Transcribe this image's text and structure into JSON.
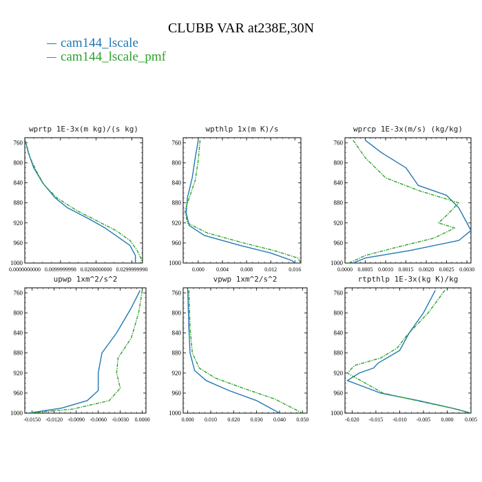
{
  "title": "CLUBB VAR at238E,30N",
  "colors": {
    "series_1": "#1f77b4",
    "series_2": "#2ca02c"
  },
  "legend": [
    {
      "label": "cam144_lscale",
      "color": "#1f77b4"
    },
    {
      "label": "cam144_lscale_pmf",
      "color": "#2ca02c"
    }
  ],
  "chart_data": [
    {
      "type": "line",
      "title": "wprtp  1E-3x(m kg)/(s kg)",
      "xlim": [
        0.0,
        0.033
      ],
      "ylim": [
        1000,
        750
      ],
      "x_ticks": [
        "0.0000000000",
        "0.0099999998",
        "0.0200000000",
        "0.0299999990"
      ],
      "x_tick_values": [
        0.0,
        0.01,
        0.02,
        0.03
      ],
      "y_ticks": [
        760,
        800,
        840,
        880,
        920,
        960,
        1000
      ],
      "series": [
        {
          "name": "cam144_lscale",
          "points": [
            [
              0.0001,
              755
            ],
            [
              0.001,
              780
            ],
            [
              0.0025,
              810
            ],
            [
              0.005,
              840
            ],
            [
              0.0085,
              870
            ],
            [
              0.012,
              890
            ],
            [
              0.0175,
              910
            ],
            [
              0.0225,
              930
            ],
            [
              0.0265,
              950
            ],
            [
              0.0295,
              965
            ],
            [
              0.031,
              985
            ],
            [
              0.031,
              1000
            ]
          ]
        },
        {
          "name": "cam144_lscale_pmf",
          "points": [
            [
              0.0001,
              755
            ],
            [
              0.0015,
              790
            ],
            [
              0.0035,
              820
            ],
            [
              0.0055,
              845
            ],
            [
              0.009,
              870
            ],
            [
              0.0145,
              895
            ],
            [
              0.02,
              915
            ],
            [
              0.0255,
              935
            ],
            [
              0.0295,
              955
            ],
            [
              0.0315,
              975
            ],
            [
              0.0325,
              990
            ],
            [
              0.033,
              1000
            ]
          ]
        }
      ]
    },
    {
      "type": "line",
      "title": "wpthlp  1x(m K)/s",
      "xlim": [
        -0.0025,
        0.017
      ],
      "ylim": [
        1000,
        750
      ],
      "x_ticks": [
        "0.000",
        "0.004",
        "0.008",
        "0.012",
        "0.016"
      ],
      "x_tick_values": [
        0.0,
        0.004,
        0.008,
        0.012,
        0.016
      ],
      "y_ticks": [
        760,
        800,
        840,
        880,
        920,
        960,
        1000
      ],
      "series": [
        {
          "name": "cam144_lscale",
          "points": [
            [
              0.0,
              755
            ],
            [
              -0.0005,
              790
            ],
            [
              -0.001,
              830
            ],
            [
              -0.0018,
              870
            ],
            [
              -0.002,
              900
            ],
            [
              -0.0015,
              925
            ],
            [
              0.001,
              945
            ],
            [
              0.007,
              965
            ],
            [
              0.012,
              980
            ],
            [
              0.0155,
              995
            ],
            [
              0.016,
              1000
            ]
          ]
        },
        {
          "name": "cam144_lscale_pmf",
          "points": [
            [
              0.0003,
              755
            ],
            [
              0.0,
              795
            ],
            [
              -0.0005,
              835
            ],
            [
              -0.0015,
              870
            ],
            [
              -0.0022,
              895
            ],
            [
              -0.0018,
              920
            ],
            [
              0.0015,
              940
            ],
            [
              0.0075,
              960
            ],
            [
              0.0125,
              975
            ],
            [
              0.0165,
              990
            ],
            [
              0.017,
              1000
            ]
          ]
        }
      ]
    },
    {
      "type": "line",
      "title": "wprcp  1E-3x(m/s) (kg/kg)",
      "xlim": [
        0.0,
        0.0031
      ],
      "ylim": [
        1000,
        750
      ],
      "x_ticks": [
        "0.0000",
        "0.0005",
        "0.0010",
        "0.0015",
        "0.0020",
        "0.0025",
        "0.0030"
      ],
      "x_tick_values": [
        0.0,
        0.0005,
        0.001,
        0.0015,
        0.002,
        0.0025,
        0.003
      ],
      "y_ticks": [
        760,
        800,
        840,
        880,
        920,
        960,
        1000
      ],
      "series": [
        {
          "name": "cam144_lscale",
          "points": [
            [
              0.0005,
              755
            ],
            [
              0.0009,
              780
            ],
            [
              0.0015,
              810
            ],
            [
              0.0018,
              845
            ],
            [
              0.0025,
              865
            ],
            [
              0.0028,
              890
            ],
            [
              0.003,
              920
            ],
            [
              0.0031,
              935
            ],
            [
              0.0028,
              955
            ],
            [
              0.0016,
              975
            ],
            [
              0.0005,
              990
            ],
            [
              0.0002,
              1000
            ]
          ]
        },
        {
          "name": "cam144_lscale_pmf",
          "points": [
            [
              0.0002,
              755
            ],
            [
              0.0005,
              790
            ],
            [
              0.001,
              830
            ],
            [
              0.0018,
              855
            ],
            [
              0.0024,
              870
            ],
            [
              0.0028,
              880
            ],
            [
              0.0025,
              905
            ],
            [
              0.0023,
              920
            ],
            [
              0.0027,
              930
            ],
            [
              0.0022,
              950
            ],
            [
              0.0012,
              970
            ],
            [
              0.0005,
              985
            ],
            [
              0.0001,
              1000
            ]
          ]
        }
      ]
    },
    {
      "type": "line",
      "title": "upwp  1xm^2/s^2",
      "xlim": [
        -0.016,
        0.0005
      ],
      "ylim": [
        1000,
        750
      ],
      "x_ticks": [
        "-0.0150",
        "-0.0120",
        "-0.0090",
        "-0.0060",
        "-0.0030",
        "0.0000"
      ],
      "x_tick_values": [
        -0.015,
        -0.012,
        -0.009,
        -0.006,
        -0.003,
        0.0
      ],
      "y_ticks": [
        760,
        800,
        840,
        880,
        920,
        960,
        1000
      ],
      "series": [
        {
          "name": "cam144_lscale",
          "points": [
            [
              -0.0003,
              755
            ],
            [
              -0.0015,
              790
            ],
            [
              -0.0035,
              840
            ],
            [
              -0.0055,
              880
            ],
            [
              -0.006,
              920
            ],
            [
              -0.006,
              955
            ],
            [
              -0.0075,
              975
            ],
            [
              -0.011,
              990
            ],
            [
              -0.0155,
              1000
            ]
          ]
        },
        {
          "name": "cam144_lscale_pmf",
          "points": [
            [
              0.0,
              755
            ],
            [
              -0.0005,
              800
            ],
            [
              -0.0015,
              850
            ],
            [
              -0.0033,
              890
            ],
            [
              -0.0035,
              920
            ],
            [
              -0.003,
              950
            ],
            [
              -0.0045,
              975
            ],
            [
              -0.0095,
              992
            ],
            [
              -0.0155,
              1000
            ]
          ]
        }
      ]
    },
    {
      "type": "line",
      "title": "vpwp  1xm^2/s^2",
      "xlim": [
        -0.002,
        0.052
      ],
      "ylim": [
        1000,
        750
      ],
      "x_ticks": [
        "0.000",
        "0.010",
        "0.020",
        "0.030",
        "0.040",
        "0.050"
      ],
      "x_tick_values": [
        0.0,
        0.01,
        0.02,
        0.03,
        0.04,
        0.05
      ],
      "y_ticks": [
        760,
        800,
        840,
        880,
        920,
        960,
        1000
      ],
      "series": [
        {
          "name": "cam144_lscale",
          "points": [
            [
              0.0,
              755
            ],
            [
              0.0005,
              830
            ],
            [
              0.001,
              880
            ],
            [
              0.003,
              915
            ],
            [
              0.008,
              935
            ],
            [
              0.018,
              955
            ],
            [
              0.03,
              975
            ],
            [
              0.04,
              1000
            ]
          ]
        },
        {
          "name": "cam144_lscale_pmf",
          "points": [
            [
              0.0005,
              755
            ],
            [
              0.001,
              830
            ],
            [
              0.002,
              880
            ],
            [
              0.005,
              910
            ],
            [
              0.012,
              930
            ],
            [
              0.024,
              950
            ],
            [
              0.038,
              972
            ],
            [
              0.05,
              1000
            ]
          ]
        }
      ]
    },
    {
      "type": "line",
      "title": "rtpthlp  1E-3x(kg K)/kg",
      "xlim": [
        -0.0215,
        0.005
      ],
      "ylim": [
        1000,
        750
      ],
      "x_ticks": [
        "-0.020",
        "-0.015",
        "-0.010",
        "-0.005",
        "0.000",
        "0.005"
      ],
      "x_tick_values": [
        -0.02,
        -0.015,
        -0.01,
        -0.005,
        0.0,
        0.005
      ],
      "y_ticks": [
        760,
        800,
        840,
        880,
        920,
        960,
        1000
      ],
      "series": [
        {
          "name": "cam144_lscale",
          "points": [
            [
              -0.0025,
              755
            ],
            [
              -0.005,
              800
            ],
            [
              -0.008,
              840
            ],
            [
              -0.01,
              875
            ],
            [
              -0.0145,
              900
            ],
            [
              -0.0155,
              910
            ],
            [
              -0.0185,
              920
            ],
            [
              -0.021,
              935
            ],
            [
              -0.014,
              960
            ],
            [
              -0.006,
              975
            ],
            [
              0.001,
              990
            ],
            [
              0.005,
              1000
            ]
          ]
        },
        {
          "name": "cam144_lscale_pmf",
          "points": [
            [
              -0.0005,
              755
            ],
            [
              -0.004,
              800
            ],
            [
              -0.0085,
              845
            ],
            [
              -0.0105,
              870
            ],
            [
              -0.014,
              890
            ],
            [
              -0.0195,
              905
            ],
            [
              -0.021,
              920
            ],
            [
              -0.0135,
              960
            ],
            [
              -0.005,
              978
            ],
            [
              0.002,
              992
            ],
            [
              0.005,
              1000
            ]
          ]
        }
      ]
    }
  ]
}
